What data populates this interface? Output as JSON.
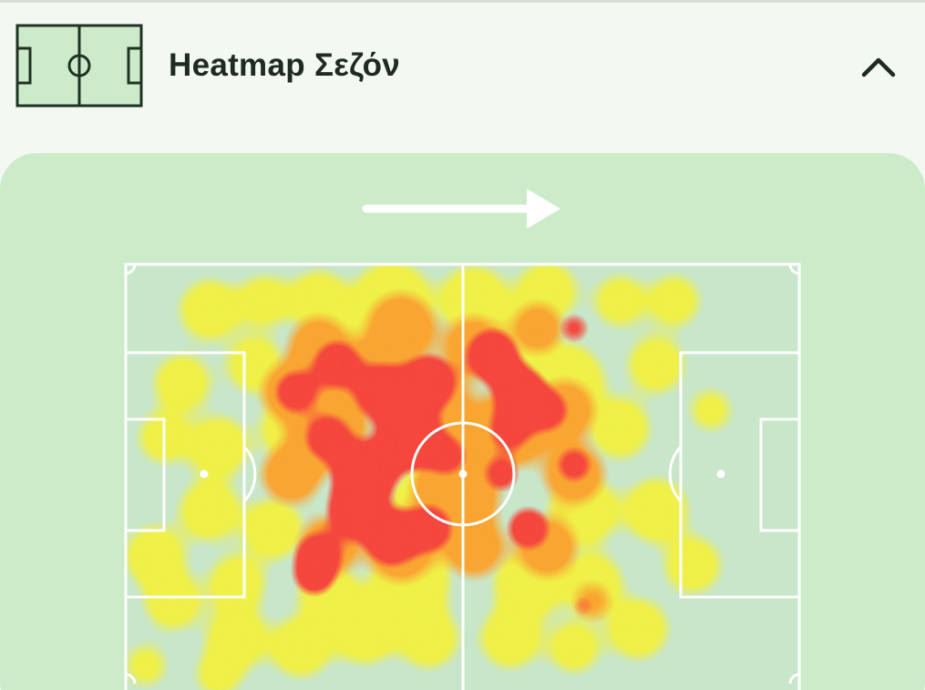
{
  "header": {
    "title": "Heatmap Σεζόν"
  }
}
